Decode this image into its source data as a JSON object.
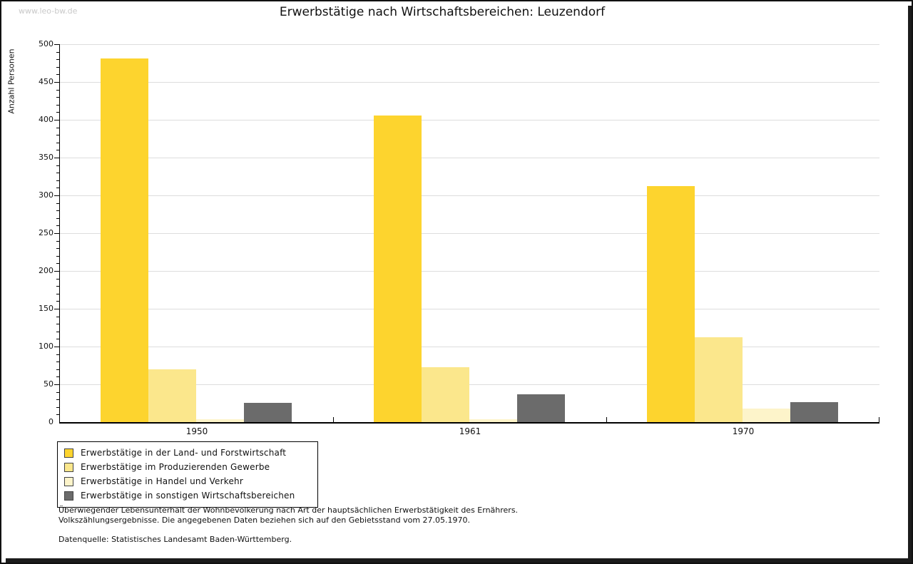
{
  "watermark": "www.leo-bw.de",
  "chart_data": {
    "type": "bar",
    "title": "Erwerbstätige nach Wirtschaftsbereichen: Leuzendorf",
    "ylabel": "Anzahl Personen",
    "xlabel": "",
    "categories": [
      "1950",
      "1961",
      "1970"
    ],
    "series": [
      {
        "name": "Erwerbstätige in der Land- und Forstwirtschaft",
        "color": "#FDD42E",
        "values": [
          481,
          406,
          312
        ]
      },
      {
        "name": "Erwerbstätige im Produzierenden Gewerbe",
        "color": "#FBE78C",
        "values": [
          70,
          73,
          112
        ]
      },
      {
        "name": "Erwerbstätige in Handel und Verkehr",
        "color": "#FDF4CA",
        "values": [
          4,
          4,
          18
        ]
      },
      {
        "name": "Erwerbstätige in sonstigen Wirtschaftsbereichen",
        "color": "#6B6B6B",
        "values": [
          25,
          37,
          26
        ]
      }
    ],
    "ylim": [
      0,
      500
    ],
    "y_major_tick": 50,
    "y_minor_tick": 10,
    "grid": true,
    "legend_position": "bottom-left",
    "gridline_color": "#DDDDDD"
  },
  "footnote": {
    "line1": "Überwiegender Lebensunterhalt der Wohnbevölkerung nach Art der hauptsächlichen Erwerbstätigkeit des Ernährers.",
    "line2": "Volkszählungsergebnisse. Die angegebenen Daten beziehen sich auf den Gebietsstand vom 27.05.1970.",
    "source": "Datenquelle: Statistisches Landesamt Baden-Württemberg."
  }
}
